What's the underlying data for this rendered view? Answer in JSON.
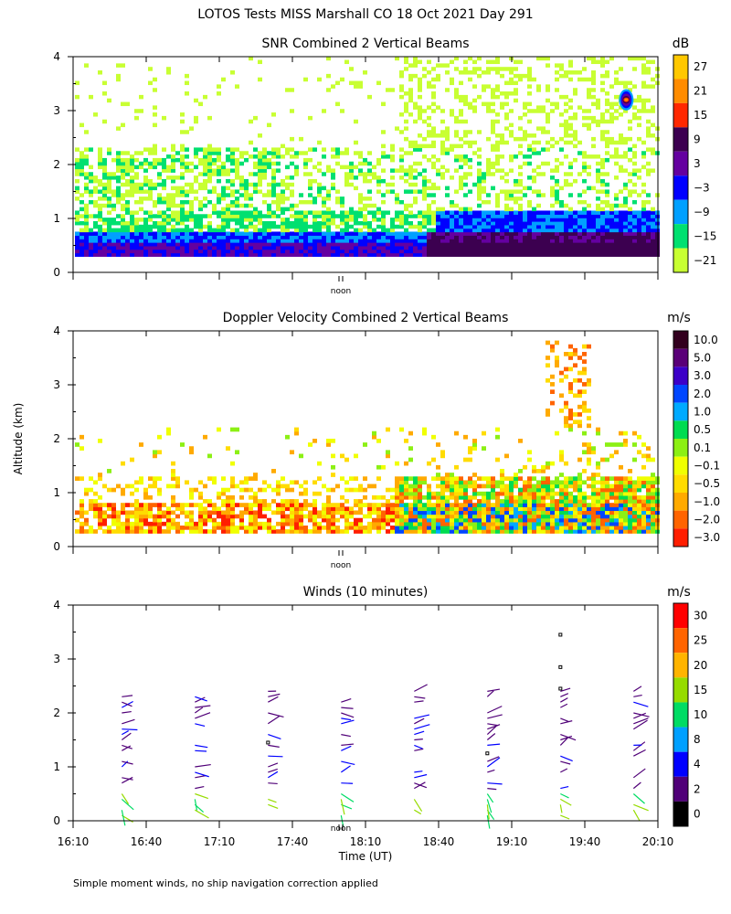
{
  "main_title": "LOTOS Tests MISS Marshall CO  18 Oct 2021 Day 291",
  "footnote": "Simple moment winds, no ship navigation correction applied",
  "y_axis_label": "Altitude (km)",
  "x_axis_label": "Time (UT)",
  "noon_label": "noon",
  "x_tick_labels": [
    "16:10",
    "16:40",
    "17:10",
    "17:40",
    "18:10",
    "18:40",
    "19:10",
    "19:40",
    "20:10"
  ],
  "y_tick_labels": [
    "0",
    "1",
    "2",
    "3",
    "4"
  ],
  "chart_data": [
    {
      "type": "heatmap",
      "title": "SNR Combined 2 Vertical Beams",
      "xlabel": "",
      "ylabel": "Altitude (km)",
      "xlim": [
        "16:10",
        "20:10"
      ],
      "ylim": [
        0,
        4
      ],
      "colorbar": {
        "unit": "dB",
        "tick_labels": [
          "27",
          "21",
          "15",
          "9",
          "3",
          "−3",
          "−9",
          "−15",
          "−21"
        ],
        "colors": [
          "#ffc800",
          "#ff8c00",
          "#ff2800",
          "#3c0050",
          "#6400a0",
          "#0000ff",
          "#00a0ff",
          "#00e070",
          "#c8ff32"
        ]
      },
      "bands": [
        {
          "label": "0.3-0.5 km",
          "value": "-3 to 9"
        },
        {
          "label": "0.5-1.2 km",
          "value": "-15 to -3"
        },
        {
          "label": "1.2-2.3 km",
          "value": "-21 to -9"
        },
        {
          "label": "3.2 km near 19:57",
          "value": "15 to 21"
        }
      ]
    },
    {
      "type": "heatmap",
      "title": "Doppler Velocity Combined 2 Vertical Beams",
      "xlabel": "",
      "ylabel": "Altitude (km)",
      "xlim": [
        "16:10",
        "20:10"
      ],
      "ylim": [
        0,
        4
      ],
      "colorbar": {
        "unit": "m/s",
        "tick_labels": [
          "10.0",
          "5.0",
          "3.0",
          "2.0",
          "1.0",
          "0.5",
          "0.1",
          "−0.1",
          "−0.5",
          "−1.0",
          "−2.0",
          "−3.0"
        ],
        "colors": [
          "#32001e",
          "#5a0078",
          "#3c00c8",
          "#0046ff",
          "#00aaff",
          "#00dc50",
          "#8cf014",
          "#f0ff00",
          "#ffdc00",
          "#ffaa00",
          "#ff6400",
          "#ff1e00"
        ]
      }
    },
    {
      "type": "scatter",
      "title": "Winds (10 minutes)",
      "xlabel": "Time (UT)",
      "ylabel": "Altitude (km)",
      "xlim": [
        "16:10",
        "20:10"
      ],
      "ylim": [
        0,
        4
      ],
      "colorbar": {
        "unit": "m/s",
        "tick_labels": [
          "30",
          "25",
          "20",
          "15",
          "10",
          "8",
          "4",
          "2",
          "0"
        ],
        "colors": [
          "#ff0000",
          "#ff6400",
          "#ffb400",
          "#96dc00",
          "#00dc64",
          "#00a0ff",
          "#0000ff",
          "#500078",
          "#000000"
        ]
      },
      "profile_times": [
        "16:30",
        "17:00",
        "17:30",
        "18:00",
        "18:30",
        "19:00",
        "19:30",
        "20:00"
      ]
    }
  ]
}
